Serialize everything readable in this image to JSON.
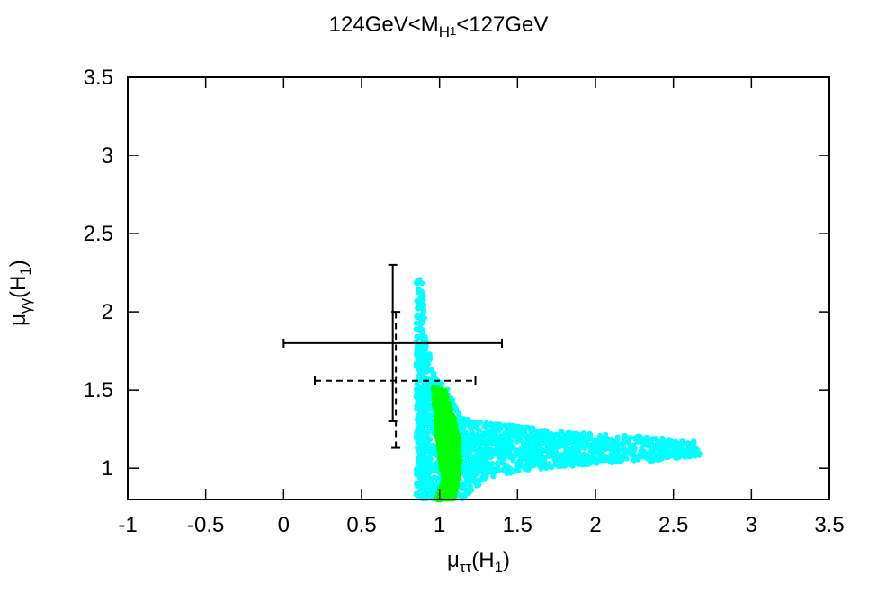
{
  "chart_data": {
    "type": "scatter",
    "title_parts": {
      "lead": "124GeV<M",
      "sub": "H",
      "subsub": "1",
      "tail": "<127GeV"
    },
    "xlabel_parts": {
      "mu": "μ",
      "sub": "ττ",
      "tail": "(H",
      "tail_sub": "1",
      "close": ")"
    },
    "ylabel_parts": {
      "mu": "μ",
      "sub": "γγ",
      "tail": "(H",
      "tail_sub": "1",
      "close": ")"
    },
    "xlim": [
      -1,
      3.5
    ],
    "ylim": [
      0.8,
      3.5
    ],
    "xticks": [
      -1,
      -0.5,
      0,
      0.5,
      1,
      1.5,
      2,
      2.5,
      3,
      3.5
    ],
    "xtick_labels": [
      "-1",
      "-0.5",
      "0",
      "0.5",
      "1",
      "1.5",
      "2",
      "2.5",
      "3",
      "3.5"
    ],
    "yticks": [
      1,
      1.5,
      2,
      2.5,
      3,
      3.5
    ],
    "ytick_labels": [
      "1",
      "1.5",
      "2",
      "2.5",
      "3",
      "3.5"
    ],
    "grid": false,
    "series": [
      {
        "color": "#00ffff",
        "marker": "dot",
        "region": [
          [
            0.85,
            0.8
          ],
          [
            0.85,
            2.22
          ],
          [
            0.89,
            2.22
          ],
          [
            0.91,
            1.85
          ],
          [
            0.96,
            1.62
          ],
          [
            1.06,
            1.5
          ],
          [
            1.12,
            1.36
          ],
          [
            1.25,
            1.3
          ],
          [
            1.6,
            1.26
          ],
          [
            2.0,
            1.22
          ],
          [
            2.35,
            1.2
          ],
          [
            2.68,
            1.17
          ],
          [
            2.68,
            1.08
          ],
          [
            2.3,
            1.04
          ],
          [
            1.9,
            1.02
          ],
          [
            1.5,
            0.98
          ],
          [
            1.3,
            0.93
          ],
          [
            1.2,
            0.85
          ],
          [
            1.15,
            0.8
          ]
        ]
      },
      {
        "color": "#00ff00",
        "marker": "dot",
        "region": [
          [
            0.96,
            1.52
          ],
          [
            1.03,
            1.5
          ],
          [
            1.06,
            1.42
          ],
          [
            1.1,
            1.3
          ],
          [
            1.12,
            1.2
          ],
          [
            1.13,
            1.05
          ],
          [
            1.12,
            0.92
          ],
          [
            1.09,
            0.8
          ],
          [
            0.98,
            0.8
          ],
          [
            1.02,
            0.93
          ],
          [
            1.0,
            1.1
          ],
          [
            0.98,
            1.22
          ],
          [
            0.97,
            1.35
          ]
        ]
      }
    ],
    "measurements": [
      {
        "style": "solid",
        "x": 0.7,
        "x_err": [
          0.0,
          1.4
        ],
        "y": 1.8,
        "y_err": [
          1.3,
          2.3
        ]
      },
      {
        "style": "dashed",
        "x": 0.72,
        "x_err": [
          0.2,
          1.23
        ],
        "y": 1.56,
        "y_err": [
          1.13,
          2.0
        ]
      }
    ]
  }
}
